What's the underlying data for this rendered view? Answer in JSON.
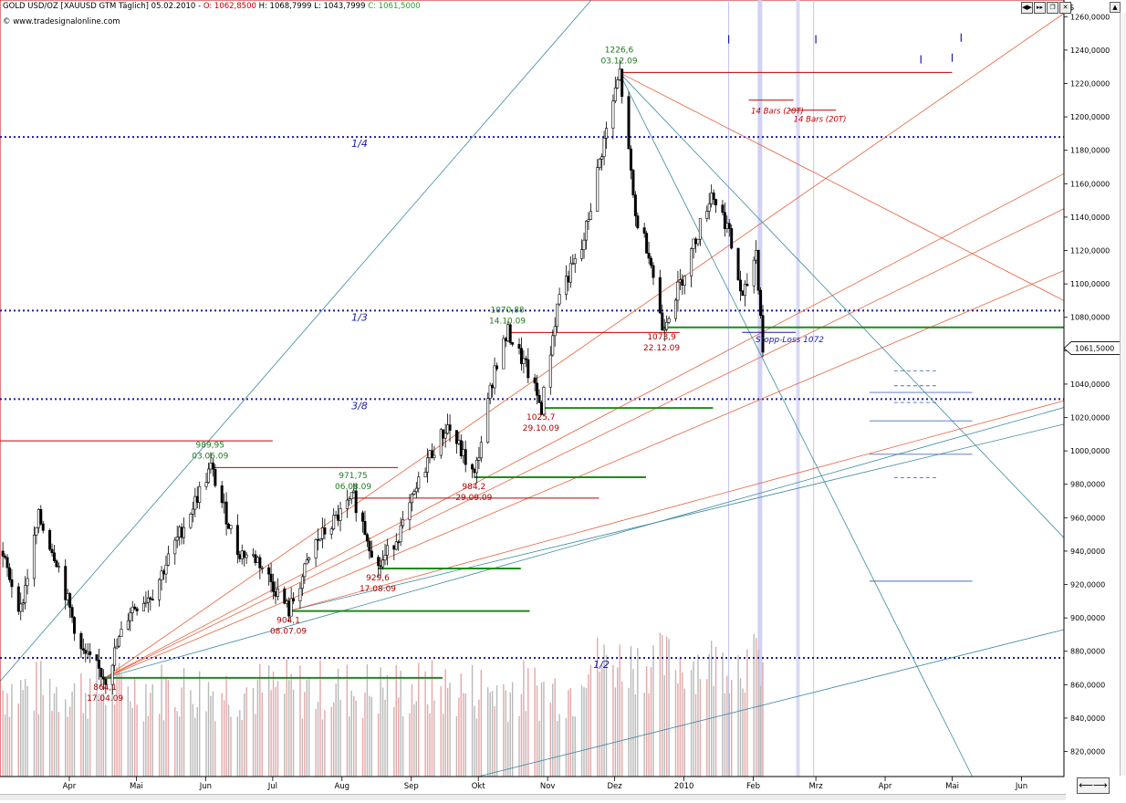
{
  "header": {
    "instrument": "GOLD USD/OZ [XAUUSD GTM  Täglich] 05.02.2010 -",
    "open": "O: 1062,8500",
    "high": "H: 1068,7999",
    "low": "L: 1043,7999",
    "close": "C: 1061,5000",
    "source": "© www.tradesignalonline.com",
    "currency_label": "$"
  },
  "window_buttons": [
    "◀▶",
    "▸▸",
    "❐",
    "✕"
  ],
  "scroll_up_icon": "▲",
  "nav_button": "⟵⟶",
  "chart_data": {
    "type": "candlestick",
    "title": "GOLD USD/OZ [XAUUSD GTM  Täglich] 05.02.2010",
    "ylim": [
      805,
      1270
    ],
    "y_ticks": [
      820,
      840,
      860,
      880,
      900,
      920,
      940,
      960,
      980,
      1000,
      1020,
      1040,
      1060,
      1080,
      1100,
      1120,
      1140,
      1160,
      1180,
      1200,
      1220,
      1240,
      1260
    ],
    "last_price": 1061.5,
    "last_price_label": "1061,5000",
    "x_range": [
      "2009-03-01",
      "2010-06-20"
    ],
    "months": [
      {
        "label": "Apr",
        "date": "2009-04-01"
      },
      {
        "label": "Mai",
        "date": "2009-05-01"
      },
      {
        "label": "Jun",
        "date": "2009-06-01"
      },
      {
        "label": "Jul",
        "date": "2009-07-01"
      },
      {
        "label": "Aug",
        "date": "2009-08-01"
      },
      {
        "label": "Sep",
        "date": "2009-09-01"
      },
      {
        "label": "Okt",
        "date": "2009-10-01"
      },
      {
        "label": "Nov",
        "date": "2009-11-01"
      },
      {
        "label": "Dez",
        "date": "2009-12-01"
      },
      {
        "label": "2010",
        "date": "2010-01-01"
      },
      {
        "label": "Feb",
        "date": "2010-02-01"
      },
      {
        "label": "Mrz",
        "date": "2010-03-01"
      },
      {
        "label": "Apr",
        "date": "2010-04-01"
      },
      {
        "label": "Mai",
        "date": "2010-05-01"
      },
      {
        "label": "Jun",
        "date": "2010-06-01"
      }
    ],
    "price_path": [
      [
        "2009-03-01",
        940
      ],
      [
        "2009-03-10",
        905
      ],
      [
        "2009-03-18",
        960
      ],
      [
        "2009-03-26",
        935
      ],
      [
        "2009-04-06",
        880
      ],
      [
        "2009-04-17",
        864.1
      ],
      [
        "2009-04-28",
        905
      ],
      [
        "2009-05-08",
        915
      ],
      [
        "2009-05-20",
        950
      ],
      [
        "2009-06-03",
        989.95
      ],
      [
        "2009-06-15",
        940
      ],
      [
        "2009-06-24",
        935
      ],
      [
        "2009-07-08",
        904.1
      ],
      [
        "2009-07-20",
        945
      ],
      [
        "2009-08-06",
        971.75
      ],
      [
        "2009-08-17",
        929.6
      ],
      [
        "2009-08-28",
        955
      ],
      [
        "2009-09-08",
        995
      ],
      [
        "2009-09-17",
        1015
      ],
      [
        "2009-09-29",
        984.2
      ],
      [
        "2009-10-08",
        1050
      ],
      [
        "2009-10-14",
        1070.88
      ],
      [
        "2009-10-22",
        1050
      ],
      [
        "2009-10-29",
        1025.7
      ],
      [
        "2009-11-06",
        1095
      ],
      [
        "2009-11-16",
        1120
      ],
      [
        "2009-11-25",
        1180
      ],
      [
        "2009-12-03",
        1226.6
      ],
      [
        "2009-12-10",
        1140
      ],
      [
        "2009-12-16",
        1120
      ],
      [
        "2009-12-22",
        1073.9
      ],
      [
        "2009-12-30",
        1100
      ],
      [
        "2010-01-08",
        1135
      ],
      [
        "2010-01-13",
        1155
      ],
      [
        "2010-01-20",
        1135
      ],
      [
        "2010-01-27",
        1090
      ],
      [
        "2010-02-02",
        1120
      ],
      [
        "2010-02-05",
        1061.5
      ]
    ],
    "pivot_labels": [
      {
        "price": "864,1",
        "date": "17.04.09",
        "type": "low"
      },
      {
        "price": "989,95",
        "date": "03.06.09",
        "type": "high"
      },
      {
        "price": "904,1",
        "date": "08.07.09",
        "type": "low"
      },
      {
        "price": "971,75",
        "date": "06.08.09",
        "type": "high"
      },
      {
        "price": "929,6",
        "date": "17.08.09",
        "type": "low"
      },
      {
        "price": "984,2",
        "date": "29.09.09",
        "type": "low"
      },
      {
        "price": "1070,88",
        "date": "14.10.09",
        "type": "high"
      },
      {
        "price": "1025,7",
        "date": "29.10.09",
        "type": "low"
      },
      {
        "price": "1226,6",
        "date": "03.12.09",
        "type": "high"
      },
      {
        "price": "1073,9",
        "date": "22.12.09",
        "type": "low"
      }
    ],
    "gann_levels": [
      {
        "label": "1/4",
        "value": 1188
      },
      {
        "label": "1/3",
        "value": 1084
      },
      {
        "label": "3/8",
        "value": 1031
      },
      {
        "label": "1/2",
        "value": 876
      }
    ],
    "annotations": {
      "stop_loss": "Stopp-Loss 1072",
      "bars1": "14 Bars (20T)",
      "bars2": "14 Bars (20T)"
    },
    "grid": false,
    "legend": "none"
  }
}
